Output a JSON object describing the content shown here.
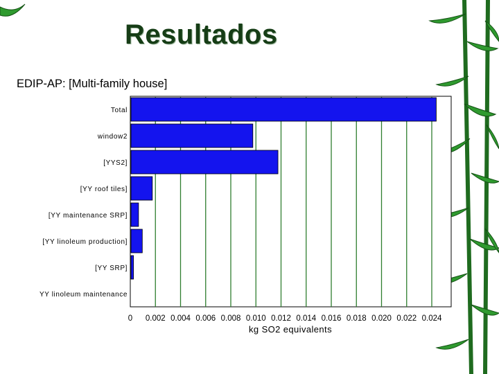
{
  "slide": {
    "title": "Resultados"
  },
  "chart_data": {
    "type": "bar",
    "orientation": "horizontal",
    "title": "EDIP-AP: [Multi-family house]",
    "xlabel": "kg SO2 equivalents",
    "ylabel": "",
    "xlim": [
      0,
      0.025
    ],
    "grid": true,
    "categories": [
      "Total",
      "window2",
      "[YYS2]",
      "[YY roof tiles]",
      "[YY maintenance SRP]",
      "[YY linoleum production]",
      "[YY SRP]",
      "YY linoleum maintenance"
    ],
    "values": [
      0.0243,
      0.0097,
      0.0117,
      0.0017,
      0.0006,
      0.0009,
      0.0002,
      0.0
    ],
    "x_ticks": [
      "0",
      "0.002",
      "0.004",
      "0.006",
      "0.008",
      "0.010",
      "0.012",
      "0.014",
      "0.016",
      "0.018",
      "0.020",
      "0.022",
      "0.024"
    ],
    "bar_color": "#1414ee",
    "grid_color": "#2e7d2e"
  }
}
